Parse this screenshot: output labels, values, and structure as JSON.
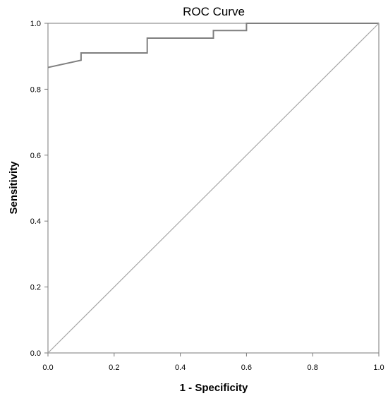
{
  "chart_data": {
    "type": "line",
    "title": "ROC Curve",
    "xlabel": "1 - Specificity",
    "ylabel": "Sensitivity",
    "xlim": [
      0,
      1
    ],
    "ylim": [
      0,
      1
    ],
    "x_ticks": [
      "0.0",
      "0.2",
      "0.4",
      "0.6",
      "0.8",
      "1.0"
    ],
    "y_ticks": [
      "0.0",
      "0.2",
      "0.4",
      "0.6",
      "0.8",
      "1.0"
    ],
    "grid": false,
    "legend": "none",
    "series": [
      {
        "points": [
          [
            0.0,
            0.866
          ],
          [
            0.1,
            0.888
          ],
          [
            0.1,
            0.91
          ],
          [
            0.3,
            0.91
          ],
          [
            0.3,
            0.955
          ],
          [
            0.5,
            0.955
          ],
          [
            0.5,
            0.978
          ],
          [
            0.6,
            0.978
          ],
          [
            0.6,
            1.0
          ],
          [
            1.0,
            1.0
          ]
        ],
        "color": "#7f7f7f"
      },
      {
        "points": [
          [
            0.0,
            0.0
          ],
          [
            1.0,
            1.0
          ]
        ],
        "color": "#a6a6a6"
      }
    ]
  }
}
